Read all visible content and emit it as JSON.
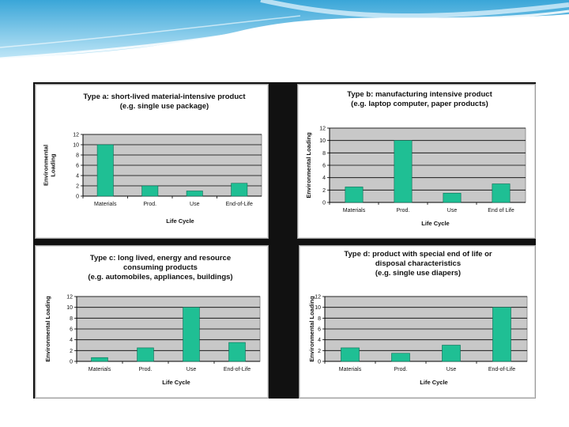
{
  "slide": {
    "title": "",
    "accent_color": "#7ec9ea"
  },
  "chart_data": [
    {
      "type": "bar",
      "title": [
        "Type a: short-lived material-intensive product",
        "(e.g. single use package)"
      ],
      "categories": [
        "Materials",
        "Prod.",
        "Use",
        "End-of-Life"
      ],
      "values": [
        10,
        2,
        1,
        2.5
      ],
      "ylabel": [
        "Environmental",
        "Loading"
      ],
      "xlabel": "Life Cycle",
      "ylim": [
        0,
        12
      ],
      "yticks": [
        0,
        2,
        4,
        6,
        8,
        10,
        12
      ],
      "ytick_labels": [
        "0",
        "2",
        "4",
        "6",
        "8",
        "10",
        "12"
      ],
      "grid": true,
      "bar_color": "#1fbf94",
      "plot_bg": "#c8c8c8"
    },
    {
      "type": "bar",
      "title": [
        "Type b: manufacturing intensive product",
        "(e.g. laptop computer, paper products)"
      ],
      "categories": [
        "Materials",
        "Prod.",
        "Use",
        "End of Life"
      ],
      "values": [
        2.5,
        10,
        1.5,
        3
      ],
      "ylabel": [
        "Environmental Loading"
      ],
      "xlabel": "Life Cycle",
      "ylim": [
        0,
        12
      ],
      "yticks": [
        0,
        2,
        4,
        6,
        8,
        10,
        12
      ],
      "ytick_labels": [
        "0",
        "2",
        "4",
        "6",
        "8",
        "10",
        "12"
      ],
      "grid": true,
      "bar_color": "#1fbf94",
      "plot_bg": "#c8c8c8"
    },
    {
      "type": "bar",
      "title": [
        "Type c: long lived, energy and resource",
        "consuming products",
        "(e.g. automobiles, appliances, buildings)"
      ],
      "categories": [
        "Materials",
        "Prod.",
        "Use",
        "End-of-Life"
      ],
      "values": [
        0.7,
        2.5,
        10,
        3.5
      ],
      "ylabel": [
        "Environmental Loading"
      ],
      "xlabel": "Life Cycle",
      "ylim": [
        0,
        12
      ],
      "yticks": [
        0,
        2,
        4,
        6,
        8,
        10,
        12
      ],
      "ytick_labels": [
        "0",
        "2",
        "4",
        "6",
        "8",
        "10",
        "12"
      ],
      "grid": true,
      "bar_color": "#1fbf94",
      "plot_bg": "#c8c8c8"
    },
    {
      "type": "bar",
      "title": [
        "Type d: product with special end of life or",
        "disposal characteristics",
        "(e.g. single use diapers)"
      ],
      "categories": [
        "Materials",
        "Prod.",
        "Use",
        "End-of-Life"
      ],
      "values": [
        2.5,
        1.5,
        3,
        10
      ],
      "ylabel": [
        "Environmental Loading"
      ],
      "xlabel": "Life Cycle",
      "ylim": [
        0,
        12
      ],
      "yticks": [
        0,
        2,
        4,
        6,
        8,
        10,
        12
      ],
      "ytick_labels": [
        "0",
        "2",
        "4",
        "6",
        "8",
        "10",
        "12"
      ],
      "grid": true,
      "bar_color": "#1fbf94",
      "plot_bg": "#c8c8c8"
    }
  ]
}
